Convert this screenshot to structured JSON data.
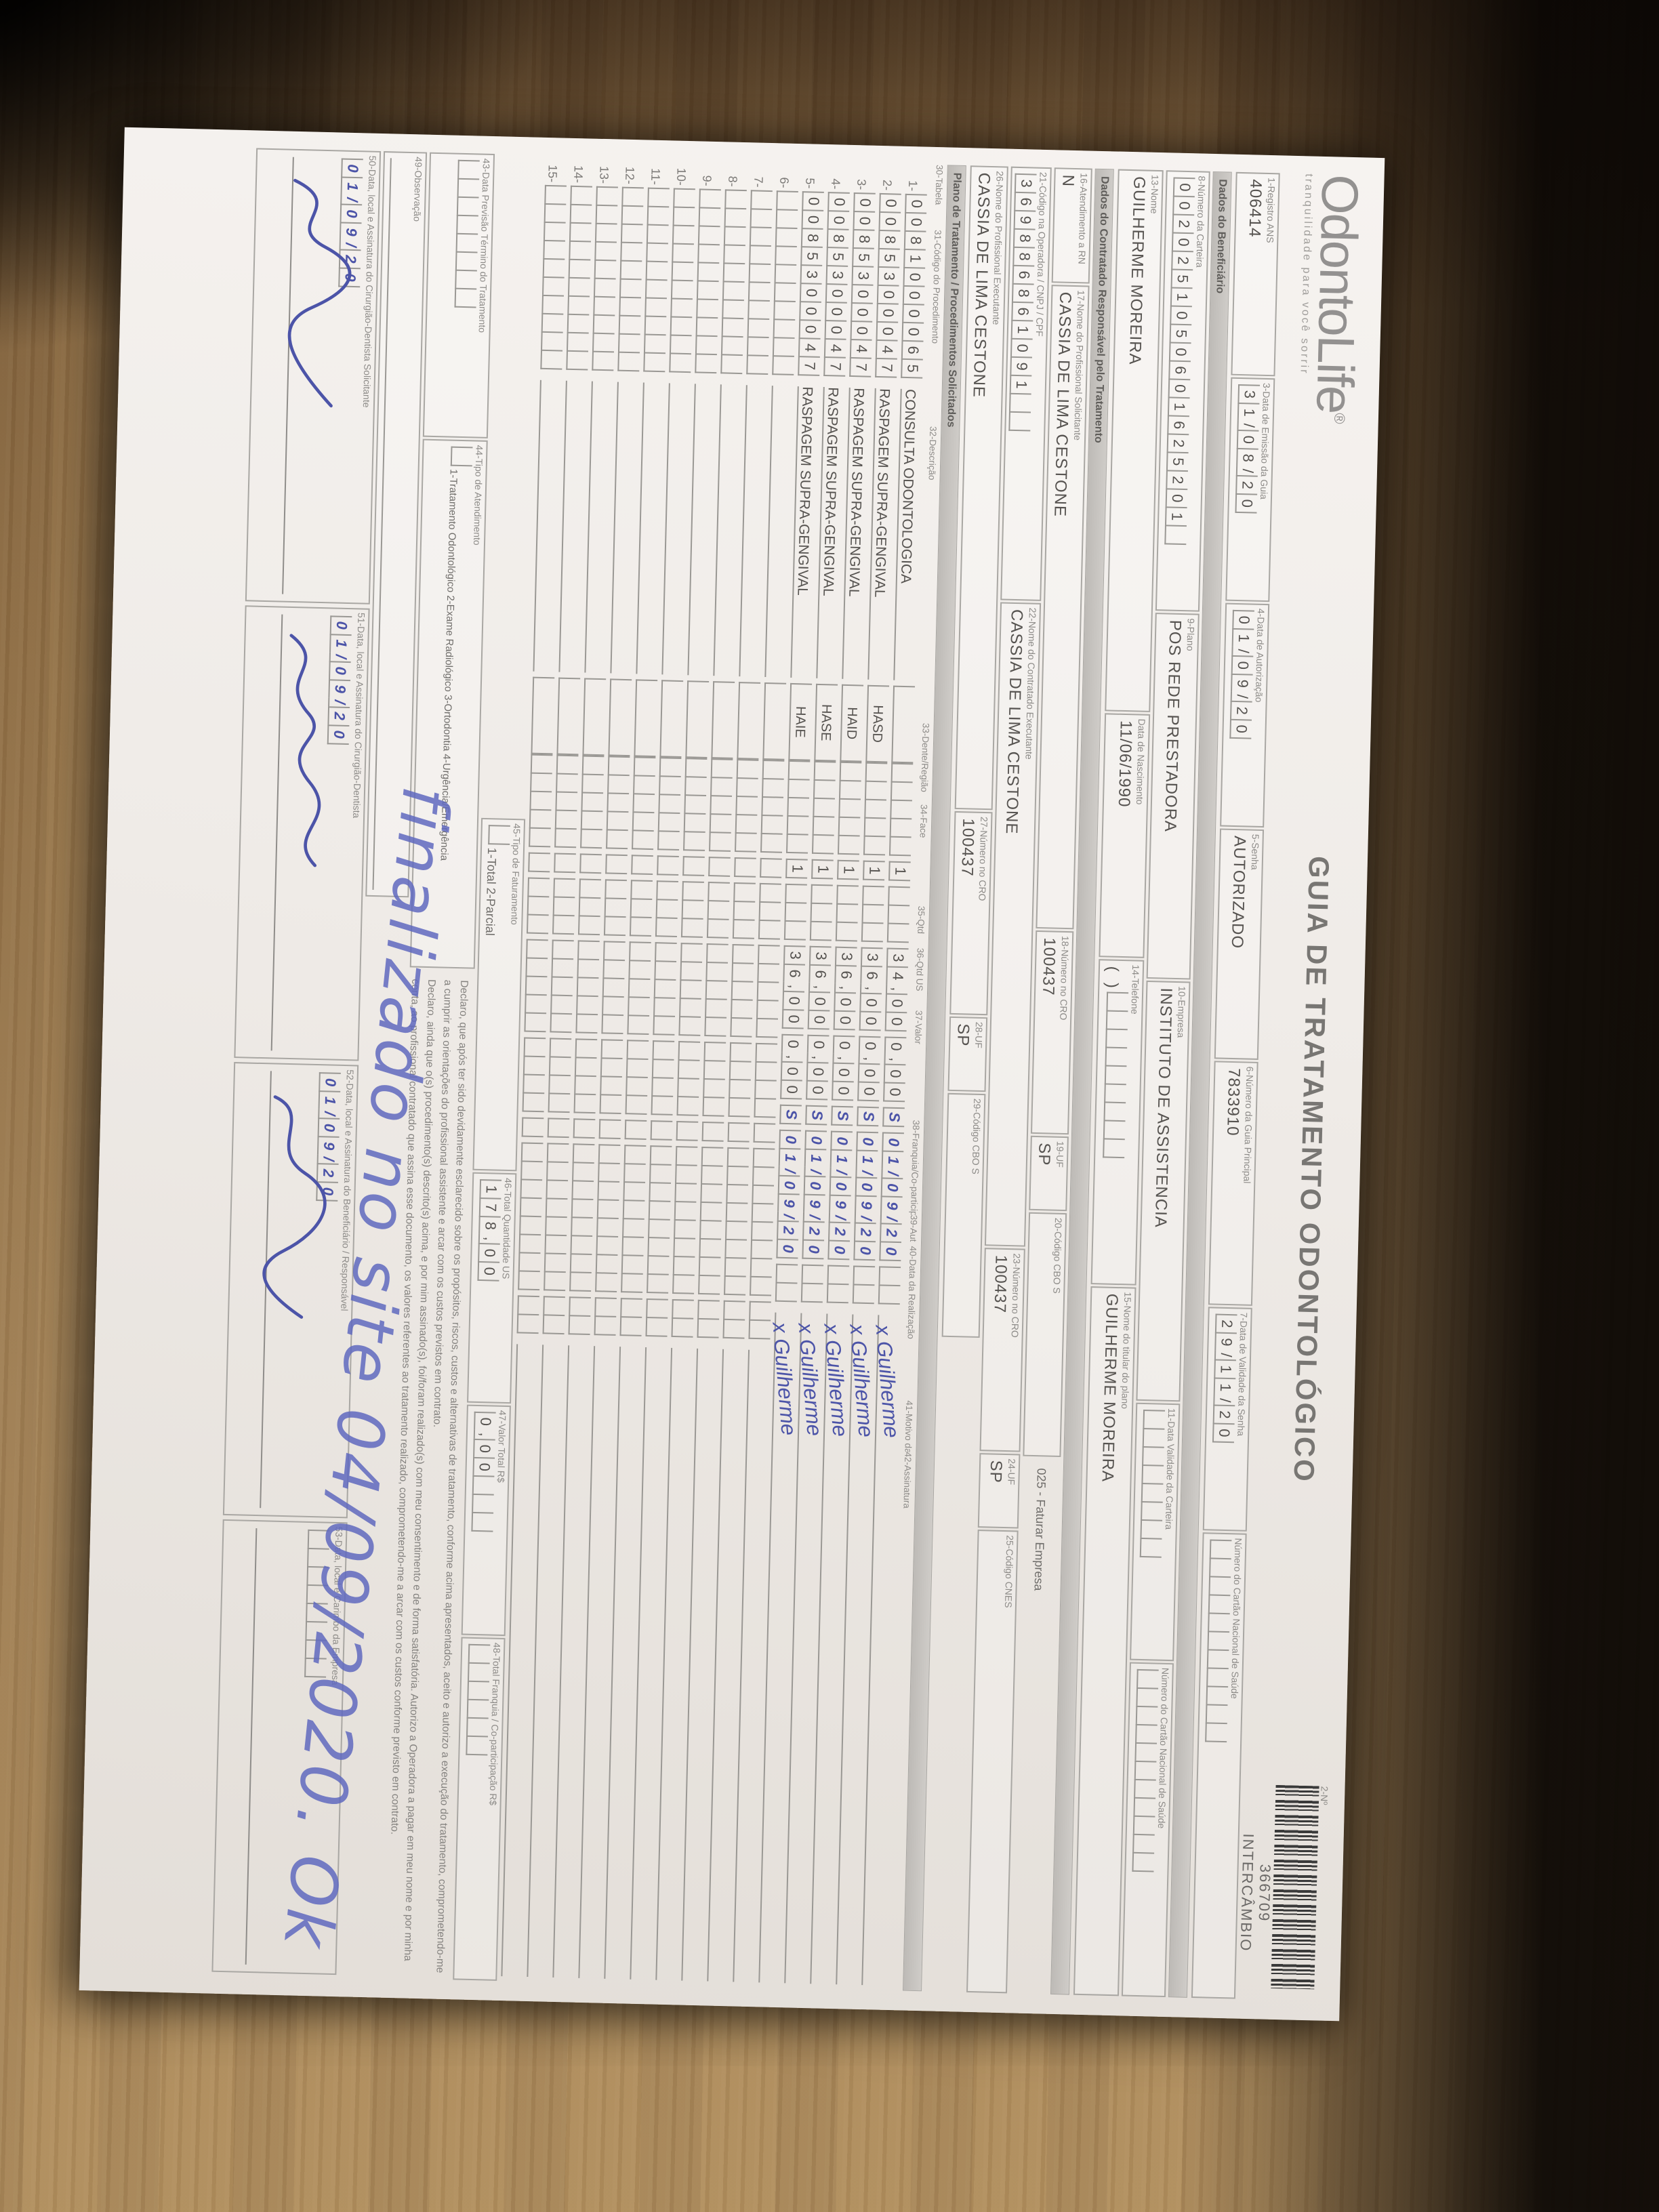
{
  "header": {
    "registro_label": "1-Registro ANS",
    "registro_value": "406414",
    "logo_text": "OdontoLife",
    "logo_reg": "®",
    "logo_tagline": "tranquilidade para você sorrir",
    "title": "GUIA DE TRATAMENTO ODONTOLÓGICO",
    "guia_numero_label": "2-Nº",
    "guia_numero": "366709",
    "guia_tipo": "INTERCÂMBIO",
    "emissao_label": "3-Data de Emissão da Guia",
    "emissao": "31/08/20",
    "autorizacao_label": "4-Data de Autorização",
    "autorizacao": "01/09/20",
    "senha_label": "5-Senha",
    "senha": "AUTORIZADO",
    "guia_principal_label": "6-Número da Guia Principal",
    "guia_principal": "7833910",
    "validade_senha_label": "7-Data de Validade da Senha",
    "validade_senha": "29/11/20",
    "cns_label": "Número do Cartão Nacional de Saúde",
    "cns": ""
  },
  "beneficiario": {
    "band": "Dados do Beneficiário",
    "carteira_label": "8-Número da Carteira",
    "carteira": "0020251050601625201",
    "plano_label": "9-Plano",
    "plano": "POS REDE PRESTADORA",
    "empresa_label": "10-Empresa",
    "empresa": "INSTITUTO DE ASSISTENCIA",
    "validade_carteira_label": "11-Data Validade da Carteira",
    "validade_carteira": "",
    "nome_label": "13-Nome",
    "nome": "GUILHERME MOREIRA",
    "nascimento_label": "Data de Nascimento",
    "nascimento": "11/06/1990",
    "telefone_label": "14-Telefone",
    "telefone": "",
    "titular_label": "15-Nome do titular do plano",
    "titular": "GUILHERME MOREIRA"
  },
  "contratado": {
    "band": "Dados do Contratado Responsável pelo Tratamento",
    "rn_label": "16-Atendimento a RN",
    "rn": "N",
    "solicitante_label": "17-Nome do Profissional Solicitante",
    "solicitante": "CASSIA DE LIMA CESTONE",
    "cro1_label": "18-Número no CRO",
    "cro1": "100437",
    "uf1_label": "19-UF",
    "uf1": "SP",
    "cbo1_label": "20-Código CBO S",
    "cbo1": "",
    "faturar_note": "025 - Faturar Empresa",
    "codigo_operadora_label": "21-Código na Operadora / CNPJ / CPF",
    "codigo_operadora": "369886861091",
    "executante_label": "22-Nome do Contratado Executante",
    "executante": "CASSIA DE LIMA CESTONE",
    "cro2_label": "23-Número no CRO",
    "cro2": "100437",
    "uf2_label": "24-UF",
    "uf2": "SP",
    "cnes_label": "25-Código CNES",
    "cnes": "",
    "prof_executante_label": "26-Nome do Profissional Executante",
    "prof_executante": "CASSIA DE LIMA CESTONE",
    "cro3_label": "27-Número no CRO",
    "cro3": "100437",
    "uf3_label": "28-UF",
    "uf3": "SP",
    "cbo3_label": "29-Código CBO S",
    "cbo3": ""
  },
  "plano_band": "Plano de Tratamento / Procedimentos Solicitados",
  "table": {
    "headers": [
      "30-Tabela",
      "31-Código do Procedimento",
      "32-Descrição",
      "33-Dente/Região",
      "34-Face",
      "35-Qtd",
      "36-Qtd US",
      "37-Valor",
      "38-Franquia/Co-participação R$",
      "39-Aut",
      "40-Data da Realização",
      "41-Motivo da Glosa",
      "42-Assinatura"
    ],
    "rows": [
      {
        "n": "1",
        "codigo": "0081000065",
        "descricao": "CONSULTA ODONTOLOGICA",
        "dente": "",
        "qtd": "1",
        "valor": "34,00",
        "franquia": "0,00",
        "aut": "S",
        "data": "01/09/20",
        "assinatura": "x Guilherme"
      },
      {
        "n": "2",
        "codigo": "0085300047",
        "descricao": "RASPAGEM SUPRA-GENGIVAL",
        "dente": "HASD",
        "qtd": "1",
        "valor": "36,00",
        "franquia": "0,00",
        "aut": "S",
        "data": "01/09/20",
        "assinatura": "x Guilherme"
      },
      {
        "n": "3",
        "codigo": "0085300047",
        "descricao": "RASPAGEM SUPRA-GENGIVAL",
        "dente": "HAID",
        "qtd": "1",
        "valor": "36,00",
        "franquia": "0,00",
        "aut": "S",
        "data": "01/09/20",
        "assinatura": "x Guilherme"
      },
      {
        "n": "4",
        "codigo": "0085300047",
        "descricao": "RASPAGEM SUPRA-GENGIVAL",
        "dente": "HASE",
        "qtd": "1",
        "valor": "36,00",
        "franquia": "0,00",
        "aut": "S",
        "data": "01/09/20",
        "assinatura": "x Guilherme"
      },
      {
        "n": "5",
        "codigo": "0085300047",
        "descricao": "RASPAGEM SUPRA-GENGIVAL",
        "dente": "HAIE",
        "qtd": "1",
        "valor": "36,00",
        "franquia": "0,00",
        "aut": "S",
        "data": "01/09/20",
        "assinatura": "x Guilherme"
      },
      {
        "n": "6"
      },
      {
        "n": "7"
      },
      {
        "n": "8"
      },
      {
        "n": "9"
      },
      {
        "n": "10"
      },
      {
        "n": "11"
      },
      {
        "n": "12"
      },
      {
        "n": "13"
      },
      {
        "n": "14"
      },
      {
        "n": "15"
      }
    ]
  },
  "totais": {
    "faturamento_label": "45-Tipo de Faturamento",
    "faturamento_options": "1-Total  2-Parcial",
    "faturamento": "",
    "total_us_label": "46-Total Quantidade US",
    "total_us": "178,00",
    "valor_total_label": "47-Valor Total R$",
    "valor_total": "0,00",
    "franquia_total_label": "48-Total Franquia / Co-participação R$",
    "franquia_total": ""
  },
  "footer": {
    "termino_label": "43-Data Previsão Término do Tratamento",
    "termino": "",
    "tipo_atendimento_label": "44-Tipo de Atendimento",
    "tipo_atendimento_options": "1-Tratamento Odontológico  2-Exame Radiológico  3-Ortodontia  4-Urgência/Emergência",
    "declaracao": [
      "Declaro, que após ter sido devidamente esclarecido sobre os propósitos, riscos, custos e alternativas de tratamento, conforme acima apresentados, aceito e autorizo a execução do tratamento, comprometendo-me a cumprir as orientações do profissional assistente e arcar com os custos previstos em contrato.",
      "Declaro, ainda que o(s) procedimento(s) descrito(s) acima, e por mim assinado(s), foi/foram realizado(s) com meu consentimento e de forma satisfatória. Autorizo a Operadora a pagar em meu nome e por minha conta, ao profissional contratado que assina esse documento, os valores referentes ao tratamento realizado, comprometendo-me a arcar com os custos conforme previsto em contrato."
    ],
    "observacao_label": "49-Observação",
    "sign_boxes": [
      {
        "label": "50-Data, local e Assinatura do Cirurgião-Dentista Solicitante",
        "date": "01/09/20",
        "signed": true
      },
      {
        "label": "51-Data, local e Assinatura do Cirurgião-Dentista",
        "date": "01/09/20",
        "signed": true
      },
      {
        "label": "52-Data, local e Assinatura do Beneficiário / Responsável",
        "date": "01/09/20",
        "signed": true
      },
      {
        "label": "53-Data, local e Carimbo da Empresa",
        "date": "",
        "signed": false
      }
    ],
    "annotation": "finalizado no site 04/09/2020. Ok"
  }
}
